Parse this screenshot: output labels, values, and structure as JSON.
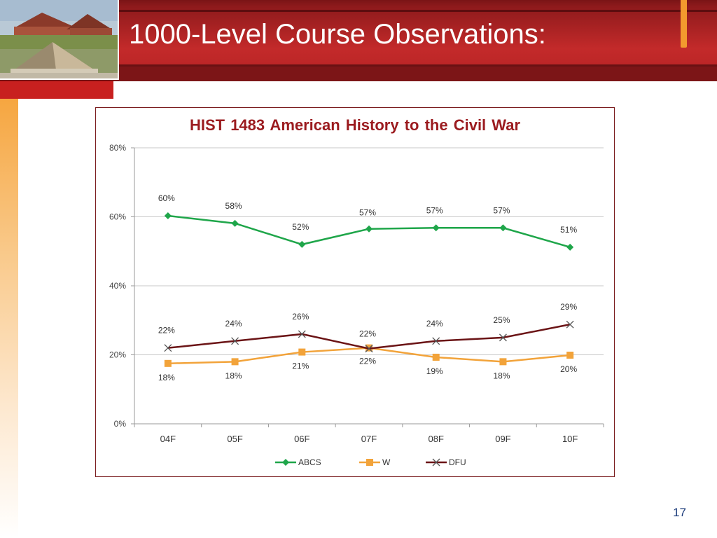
{
  "slide": {
    "title": "1000-Level Course Observations:",
    "page_number": "17"
  },
  "colors": {
    "header_red": "#c32a2a",
    "accent_orange": "#f39a2e",
    "abcs_green": "#1fa64a",
    "w_orange": "#f2a33a",
    "dfu_maroon": "#6b1416"
  },
  "chart_data": {
    "type": "line",
    "title": "HIST 1483  American History to the Civil War",
    "categories": [
      "04F",
      "05F",
      "06F",
      "07F",
      "08F",
      "09F",
      "10F"
    ],
    "ylim": [
      0,
      80
    ],
    "yticks": [
      "0%",
      "20%",
      "40%",
      "60%",
      "80%"
    ],
    "grid": true,
    "legend_position": "bottom",
    "series": [
      {
        "name": "ABCS",
        "values": [
          60.3,
          58.1,
          52.0,
          56.5,
          56.8,
          56.8,
          51.2
        ],
        "labels": [
          "60%",
          "58%",
          "52%",
          "57%",
          "57%",
          "57%",
          "51%"
        ],
        "marker": "diamond"
      },
      {
        "name": "W",
        "values": [
          17.5,
          18.0,
          20.8,
          22.0,
          19.3,
          18.0,
          19.9
        ],
        "labels": [
          "18%",
          "18%",
          "21%",
          "22%",
          "19%",
          "18%",
          "20%"
        ],
        "marker": "square"
      },
      {
        "name": "DFU",
        "values": [
          22.0,
          24.0,
          26.0,
          21.8,
          24.0,
          25.0,
          28.8
        ],
        "labels": [
          "22%",
          "24%",
          "26%",
          "22%",
          "24%",
          "25%",
          "29%"
        ],
        "marker": "x"
      }
    ]
  }
}
